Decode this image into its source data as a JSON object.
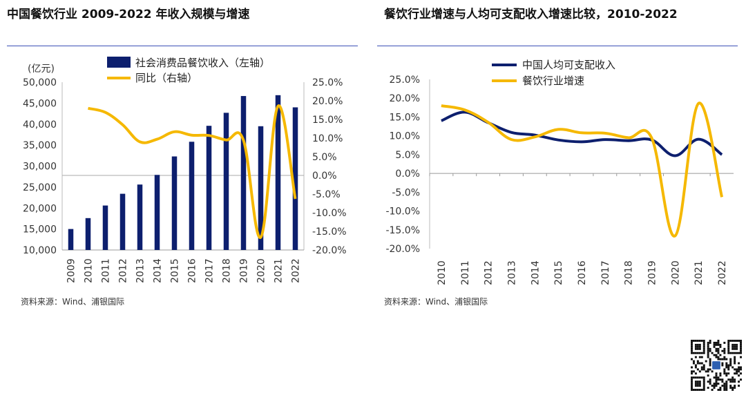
{
  "left_title": "中国餐饮行业 2009-2022 年收入规模与增速",
  "right_title": "餐饮行业增速与人均可支配收入增速比较，2010-2022",
  "left_source": "资料来源：Wind、浦银国际",
  "right_source": "资料来源：Wind、浦银国际",
  "qr_code": "qr-code",
  "colors": {
    "navy": "#0d1f6e",
    "gold": "#f5b800",
    "rule": "#3a4fb5"
  },
  "chart_data": [
    {
      "type": "bar+line",
      "title": "中国餐饮行业 2009-2022 年收入规模与增速",
      "unit_label": "(亿元)",
      "categories": [
        "2009",
        "2010",
        "2011",
        "2012",
        "2013",
        "2014",
        "2015",
        "2016",
        "2017",
        "2018",
        "2019",
        "2020",
        "2021",
        "2022"
      ],
      "series": [
        {
          "name": "社会消费品餐饮收入（左轴）",
          "type": "bar",
          "axis": "left",
          "values": [
            15000,
            17600,
            20600,
            23400,
            25600,
            27900,
            32300,
            35800,
            39600,
            42700,
            46700,
            39500,
            46900,
            44000
          ]
        },
        {
          "name": "同比（右轴）",
          "type": "line",
          "axis": "right",
          "values": [
            null,
            18.0,
            16.9,
            13.6,
            9.0,
            9.7,
            11.7,
            10.8,
            10.7,
            9.5,
            9.4,
            -16.6,
            18.6,
            -6.3
          ]
        }
      ],
      "left_axis": {
        "min": 10000,
        "max": 50000,
        "ticks": [
          "10,000",
          "15,000",
          "20,000",
          "25,000",
          "30,000",
          "35,000",
          "40,000",
          "45,000",
          "50,000"
        ]
      },
      "right_axis": {
        "min": -20,
        "max": 25,
        "ticks": [
          "-20.0%",
          "-15.0%",
          "-10.0%",
          "-5.0%",
          "0.0%",
          "5.0%",
          "10.0%",
          "15.0%",
          "20.0%",
          "25.0%"
        ]
      },
      "legend_position": "top"
    },
    {
      "type": "line",
      "title": "餐饮行业增速与人均可支配收入增速比较，2010-2022",
      "categories": [
        "2010",
        "2011",
        "2012",
        "2013",
        "2014",
        "2015",
        "2016",
        "2017",
        "2018",
        "2019",
        "2020",
        "2021",
        "2022"
      ],
      "series": [
        {
          "name": "中国人均可支配收入",
          "color_key": "navy",
          "values": [
            14.0,
            16.3,
            13.5,
            10.9,
            10.2,
            8.9,
            8.4,
            9.0,
            8.7,
            8.9,
            4.7,
            9.1,
            5.0
          ]
        },
        {
          "name": "餐饮行业增速",
          "color_key": "gold",
          "values": [
            18.0,
            16.9,
            13.6,
            9.0,
            9.7,
            11.7,
            10.8,
            10.7,
            9.5,
            9.4,
            -16.6,
            18.6,
            -6.3
          ]
        }
      ],
      "y_axis": {
        "min": -20,
        "max": 25,
        "ticks": [
          "-20.0%",
          "-15.0%",
          "-10.0%",
          "-5.0%",
          "0.0%",
          "5.0%",
          "10.0%",
          "15.0%",
          "20.0%",
          "25.0%"
        ]
      },
      "legend_position": "top"
    }
  ]
}
